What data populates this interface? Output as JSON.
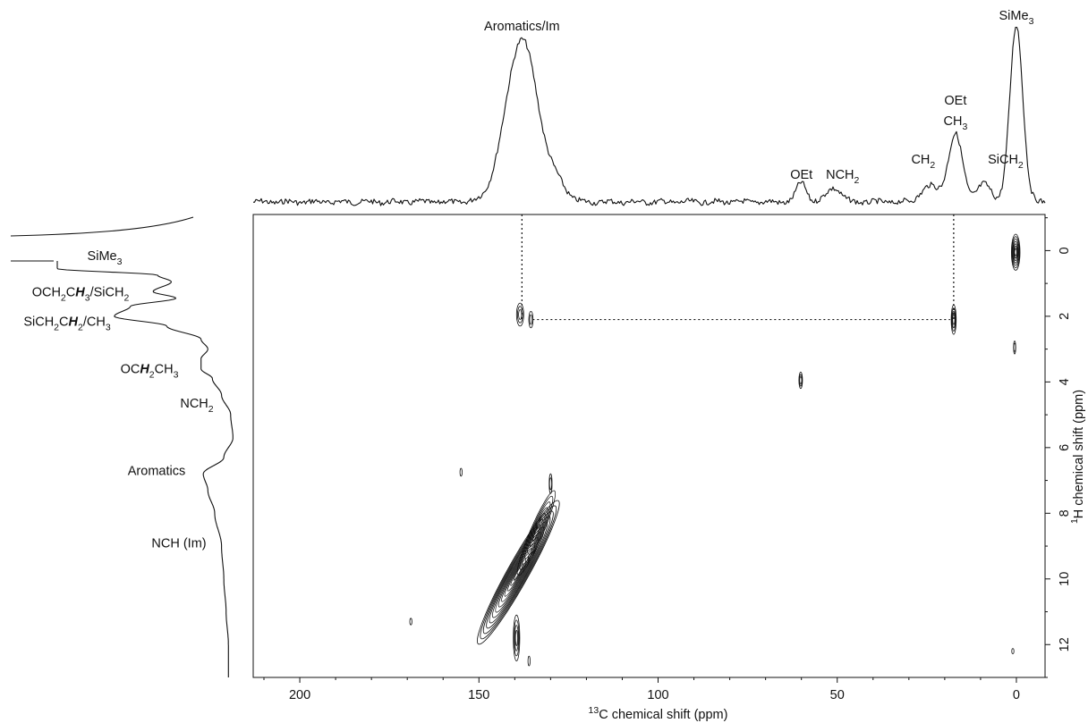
{
  "chart_data": {
    "type": "heatmap",
    "subtype": "2D HETCOR contour plot with 1D projections",
    "x_axis": {
      "label_sup": "13",
      "label_rest": "C chemical shift (ppm)",
      "ticks": [
        200,
        150,
        100,
        50,
        0
      ],
      "range": [
        213,
        -8
      ],
      "reversed": true
    },
    "y_axis": {
      "label_sup": "1",
      "label_rest": "H chemical shift (ppm)",
      "ticks": [
        0,
        2,
        4,
        6,
        8,
        10,
        12
      ],
      "range": [
        -1.1,
        13.0
      ],
      "reversed": true,
      "position": "right"
    },
    "top_projection": {
      "nucleus": "13C",
      "peaks": [
        {
          "x": 138,
          "height": 0.92,
          "width": 4.5
        },
        {
          "x": 128,
          "height": 0.08,
          "width": 2.5
        },
        {
          "x": 60,
          "height": 0.11,
          "width": 1.4
        },
        {
          "x": 51,
          "height": 0.08,
          "width": 2.0
        },
        {
          "x": 24,
          "height": 0.09,
          "width": 2.5
        },
        {
          "x": 17,
          "height": 0.38,
          "width": 2.0
        },
        {
          "x": 9,
          "height": 0.1,
          "width": 2.0
        },
        {
          "x": 0,
          "height": 1.0,
          "width": 1.8
        }
      ],
      "labels": [
        {
          "id": "aromatics-im",
          "x": 138,
          "parts": [
            [
              "Aromatics/Im",
              ""
            ]
          ]
        },
        {
          "id": "oet",
          "x": 60,
          "parts": [
            [
              "OEt",
              ""
            ]
          ]
        },
        {
          "id": "nch2",
          "x": 51,
          "parts": [
            [
              "NCH",
              ""
            ],
            [
              "2",
              "sub"
            ]
          ]
        },
        {
          "id": "ch2",
          "x": 26,
          "parts": [
            [
              "CH",
              ""
            ],
            [
              "2",
              "sub"
            ]
          ]
        },
        {
          "id": "oet-ch3-a",
          "x": 17,
          "parts": [
            [
              "OEt",
              ""
            ]
          ]
        },
        {
          "id": "oet-ch3-b",
          "x": 17,
          "parts": [
            [
              "CH",
              ""
            ],
            [
              "3",
              "sub"
            ]
          ]
        },
        {
          "id": "sich2",
          "x": 7,
          "parts": [
            [
              "SiCH",
              ""
            ],
            [
              "2",
              "sub"
            ]
          ]
        },
        {
          "id": "sime3-top",
          "x": 0,
          "parts": [
            [
              "SiMe",
              ""
            ],
            [
              "3",
              "sub"
            ]
          ]
        }
      ]
    },
    "left_projection": {
      "nucleus": "1H",
      "labels": [
        {
          "id": "sime3-left",
          "y": 0.1,
          "parts": [
            [
              "SiMe",
              ""
            ],
            [
              "3",
              "sub"
            ]
          ]
        },
        {
          "id": "och2ch3-sich2",
          "y": 1.25,
          "parts": [
            [
              "OCH",
              ""
            ],
            [
              "2",
              "sub"
            ],
            [
              "C",
              ""
            ],
            [
              "H",
              "bi"
            ],
            [
              "3",
              "sub"
            ],
            [
              "/SiCH",
              ""
            ],
            [
              "2",
              "sub"
            ]
          ]
        },
        {
          "id": "sich2ch2-ch3",
          "y": 2.1,
          "parts": [
            [
              "SiCH",
              ""
            ],
            [
              "2",
              "sub"
            ],
            [
              "C",
              ""
            ],
            [
              "H",
              "bi"
            ],
            [
              "2",
              "sub"
            ],
            [
              "/CH",
              ""
            ],
            [
              "3",
              "sub"
            ]
          ]
        },
        {
          "id": "och2ch3",
          "y": 3.6,
          "parts": [
            [
              "OC",
              ""
            ],
            [
              "H",
              "bi"
            ],
            [
              "2",
              "sub"
            ],
            [
              "CH",
              ""
            ],
            [
              "3",
              "sub"
            ]
          ]
        },
        {
          "id": "nch2-left",
          "y": 4.4,
          "parts": [
            [
              "NCH",
              ""
            ],
            [
              "2",
              "sub"
            ]
          ]
        },
        {
          "id": "aromatics",
          "y": 6.7,
          "parts": [
            [
              "Aromatics",
              ""
            ]
          ]
        },
        {
          "id": "nch-im",
          "y": 8.9,
          "parts": [
            [
              "NCH (Im)",
              ""
            ]
          ]
        }
      ]
    },
    "cross_peaks": [
      {
        "x": 139,
        "y": 9.8,
        "w": 3.0,
        "h": 2.5,
        "tilt": -0.45,
        "levels": 13
      },
      {
        "x": 134,
        "y": 8.6,
        "w": 1.8,
        "h": 1.4,
        "tilt": -0.35,
        "levels": 7
      },
      {
        "x": 139.5,
        "y": 11.8,
        "w": 0.9,
        "h": 0.7,
        "tilt": 0,
        "levels": 4
      },
      {
        "x": 138.5,
        "y": 1.95,
        "w": 1.0,
        "h": 0.35,
        "tilt": 0,
        "levels": 3
      },
      {
        "x": 135.5,
        "y": 2.1,
        "w": 0.6,
        "h": 0.25,
        "tilt": 0,
        "levels": 2
      },
      {
        "x": 17.5,
        "y": 2.1,
        "w": 0.7,
        "h": 0.45,
        "tilt": 0,
        "levels": 4
      },
      {
        "x": 60.2,
        "y": 3.95,
        "w": 0.5,
        "h": 0.25,
        "tilt": 0,
        "levels": 3
      },
      {
        "x": 0.2,
        "y": 0.05,
        "w": 1.2,
        "h": 0.55,
        "tilt": 0,
        "levels": 7
      },
      {
        "x": 0.5,
        "y": 2.95,
        "w": 0.3,
        "h": 0.2,
        "tilt": 0,
        "levels": 2
      },
      {
        "x": 155,
        "y": 6.75,
        "w": 0.2,
        "h": 0.12,
        "tilt": 0,
        "levels": 1
      },
      {
        "x": 130,
        "y": 7.1,
        "w": 0.4,
        "h": 0.3,
        "tilt": 0,
        "levels": 2
      },
      {
        "x": 169,
        "y": 11.3,
        "w": 0.15,
        "h": 0.1,
        "tilt": 0,
        "levels": 1
      },
      {
        "x": 1.0,
        "y": 12.2,
        "w": 0.15,
        "h": 0.08,
        "tilt": 0,
        "levels": 1
      },
      {
        "x": 136,
        "y": 12.5,
        "w": 0.3,
        "h": 0.15,
        "tilt": 0,
        "levels": 1
      }
    ],
    "correlation_lines": {
      "vertical_x": [
        138,
        17.5
      ],
      "horizontal_y": 2.1
    }
  }
}
